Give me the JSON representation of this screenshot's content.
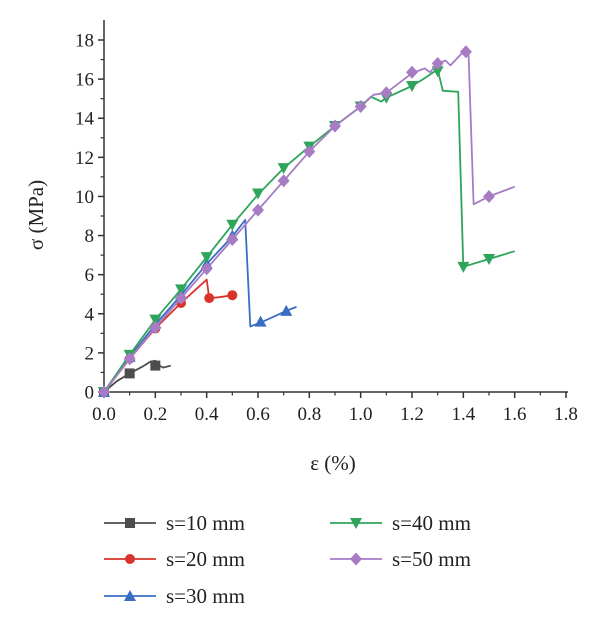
{
  "chart_data": {
    "type": "line",
    "xlabel": "ε (%)",
    "ylabel": "σ (MPa)",
    "xlim": [
      0.0,
      1.8
    ],
    "ylim": [
      0,
      18
    ],
    "xticks": [
      "0.0",
      "0.2",
      "0.4",
      "0.6",
      "0.8",
      "1.0",
      "1.2",
      "1.4",
      "1.6",
      "1.8"
    ],
    "yticks": [
      "0",
      "2",
      "4",
      "6",
      "8",
      "10",
      "12",
      "14",
      "16",
      "18"
    ],
    "grid": false,
    "legend_position": "bottom",
    "series": [
      {
        "name": "s=10 mm",
        "color": "#4d4d4d",
        "marker": "square",
        "line": [
          [
            0,
            0
          ],
          [
            0.05,
            0.55
          ],
          [
            0.1,
            0.95
          ],
          [
            0.15,
            1.3
          ],
          [
            0.18,
            1.55
          ],
          [
            0.2,
            1.6
          ],
          [
            0.21,
            1.4
          ],
          [
            0.23,
            1.25
          ],
          [
            0.26,
            1.35
          ]
        ],
        "markers": [
          [
            0,
            0
          ],
          [
            0.1,
            0.95
          ],
          [
            0.2,
            1.35
          ]
        ]
      },
      {
        "name": "s=20 mm",
        "color": "#d9342b",
        "marker": "circle",
        "line": [
          [
            0,
            0
          ],
          [
            0.1,
            1.7
          ],
          [
            0.2,
            3.25
          ],
          [
            0.3,
            4.55
          ],
          [
            0.35,
            5.15
          ],
          [
            0.4,
            5.75
          ],
          [
            0.41,
            4.8
          ],
          [
            0.45,
            4.85
          ],
          [
            0.5,
            4.95
          ]
        ],
        "markers": [
          [
            0,
            0
          ],
          [
            0.1,
            1.7
          ],
          [
            0.2,
            3.25
          ],
          [
            0.3,
            4.55
          ],
          [
            0.41,
            4.8
          ],
          [
            0.5,
            4.95
          ]
        ]
      },
      {
        "name": "s=30 mm",
        "color": "#3a6ec2",
        "marker": "triangle-up",
        "line": [
          [
            0,
            0
          ],
          [
            0.1,
            1.8
          ],
          [
            0.2,
            3.45
          ],
          [
            0.3,
            4.95
          ],
          [
            0.4,
            6.55
          ],
          [
            0.5,
            7.95
          ],
          [
            0.55,
            8.8
          ],
          [
            0.57,
            3.35
          ],
          [
            0.61,
            3.55
          ],
          [
            0.67,
            3.9
          ],
          [
            0.71,
            4.15
          ],
          [
            0.75,
            4.35
          ]
        ],
        "markers": [
          [
            0,
            0
          ],
          [
            0.1,
            1.8
          ],
          [
            0.2,
            3.5
          ],
          [
            0.3,
            5.0
          ],
          [
            0.4,
            6.55
          ],
          [
            0.5,
            8.0
          ],
          [
            0.61,
            3.6
          ],
          [
            0.71,
            4.15
          ]
        ]
      },
      {
        "name": "s=40 mm",
        "color": "#2ea55a",
        "marker": "triangle-down",
        "line": [
          [
            0,
            0
          ],
          [
            0.1,
            1.9
          ],
          [
            0.2,
            3.7
          ],
          [
            0.3,
            5.25
          ],
          [
            0.4,
            6.9
          ],
          [
            0.5,
            8.55
          ],
          [
            0.6,
            10.1
          ],
          [
            0.7,
            11.45
          ],
          [
            0.8,
            12.55
          ],
          [
            0.9,
            13.6
          ],
          [
            1.0,
            14.6
          ],
          [
            1.04,
            15.1
          ],
          [
            1.08,
            14.85
          ],
          [
            1.1,
            15.05
          ],
          [
            1.2,
            15.65
          ],
          [
            1.25,
            16.05
          ],
          [
            1.3,
            16.5
          ],
          [
            1.32,
            15.4
          ],
          [
            1.38,
            15.35
          ],
          [
            1.4,
            6.4
          ],
          [
            1.5,
            6.8
          ],
          [
            1.6,
            7.2
          ]
        ],
        "markers": [
          [
            0,
            0
          ],
          [
            0.1,
            1.9
          ],
          [
            0.2,
            3.7
          ],
          [
            0.3,
            5.25
          ],
          [
            0.4,
            6.9
          ],
          [
            0.5,
            8.55
          ],
          [
            0.6,
            10.15
          ],
          [
            0.7,
            11.45
          ],
          [
            0.8,
            12.55
          ],
          [
            0.9,
            13.6
          ],
          [
            1.0,
            14.6
          ],
          [
            1.1,
            15.05
          ],
          [
            1.2,
            15.65
          ],
          [
            1.3,
            16.4
          ],
          [
            1.4,
            6.4
          ],
          [
            1.5,
            6.8
          ]
        ]
      },
      {
        "name": "s=50 mm",
        "color": "#a77cc4",
        "marker": "diamond",
        "line": [
          [
            0,
            0
          ],
          [
            0.1,
            1.7
          ],
          [
            0.2,
            3.3
          ],
          [
            0.3,
            4.8
          ],
          [
            0.4,
            6.3
          ],
          [
            0.5,
            7.8
          ],
          [
            0.6,
            9.3
          ],
          [
            0.7,
            10.8
          ],
          [
            0.8,
            12.3
          ],
          [
            0.9,
            13.6
          ],
          [
            1.0,
            14.6
          ],
          [
            1.05,
            15.2
          ],
          [
            1.1,
            15.3
          ],
          [
            1.2,
            16.3
          ],
          [
            1.25,
            16.55
          ],
          [
            1.27,
            16.35
          ],
          [
            1.3,
            16.8
          ],
          [
            1.33,
            16.95
          ],
          [
            1.35,
            16.7
          ],
          [
            1.4,
            17.4
          ],
          [
            1.42,
            17.35
          ],
          [
            1.44,
            9.6
          ],
          [
            1.5,
            10.0
          ],
          [
            1.6,
            10.5
          ]
        ],
        "markers": [
          [
            0,
            0
          ],
          [
            0.1,
            1.7
          ],
          [
            0.2,
            3.3
          ],
          [
            0.3,
            4.8
          ],
          [
            0.4,
            6.3
          ],
          [
            0.5,
            7.8
          ],
          [
            0.6,
            9.3
          ],
          [
            0.7,
            10.8
          ],
          [
            0.8,
            12.3
          ],
          [
            0.9,
            13.6
          ],
          [
            1.0,
            14.6
          ],
          [
            1.1,
            15.3
          ],
          [
            1.2,
            16.35
          ],
          [
            1.3,
            16.8
          ],
          [
            1.41,
            17.4
          ],
          [
            1.5,
            10.0
          ]
        ]
      }
    ]
  }
}
